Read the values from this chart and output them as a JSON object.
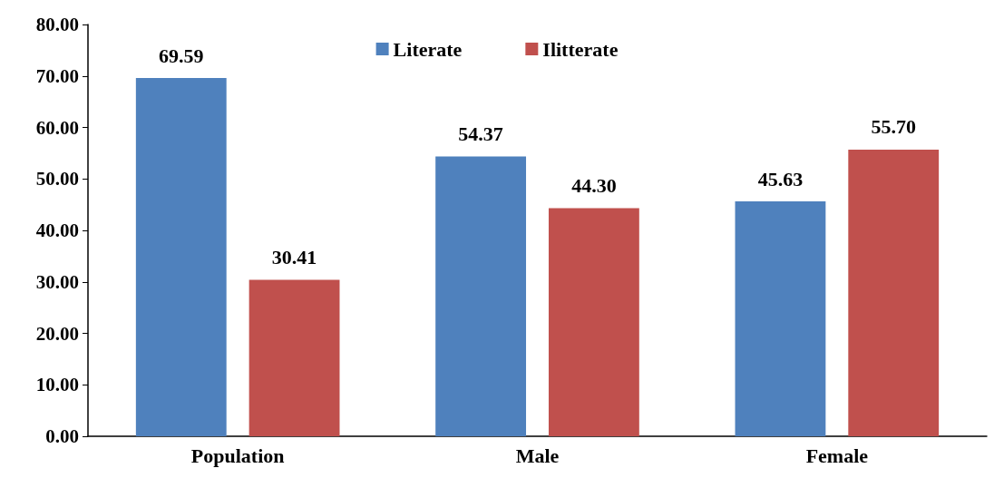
{
  "chart_data": {
    "type": "bar",
    "categories": [
      "Population",
      "Male",
      "Female"
    ],
    "series": [
      {
        "name": "Literate",
        "color": "#4f81bd",
        "values": [
          69.59,
          54.37,
          45.63
        ],
        "value_labels": [
          "69.59",
          "54.37",
          "45.63"
        ]
      },
      {
        "name": "Ilitterate",
        "color": "#c0504d",
        "values": [
          30.41,
          44.3,
          55.7
        ],
        "value_labels": [
          "30.41",
          "44.30",
          "55.70"
        ]
      }
    ],
    "ylim": [
      0,
      80
    ],
    "yticks": [
      {
        "value": 0,
        "label": "0.00"
      },
      {
        "value": 10,
        "label": "10.00"
      },
      {
        "value": 20,
        "label": "20.00"
      },
      {
        "value": 30,
        "label": "30.00"
      },
      {
        "value": 40,
        "label": "40.00"
      },
      {
        "value": 50,
        "label": "50.00"
      },
      {
        "value": 60,
        "label": "60.00"
      },
      {
        "value": 70,
        "label": "70.00"
      },
      {
        "value": 80,
        "label": "80.00"
      }
    ],
    "grid": false,
    "legend": "top"
  }
}
